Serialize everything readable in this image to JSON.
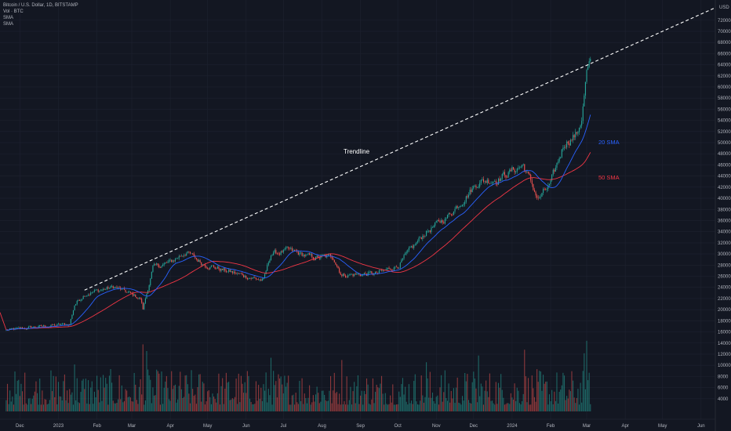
{
  "legend": {
    "title": "Bitcoin / U.S. Dollar, 1D, BITSTAMP",
    "vol": "Vol · BTC",
    "sma1": "SMA",
    "sma2": "SMA"
  },
  "colors": {
    "background": "#131722",
    "up": "#26a69a",
    "down": "#ef5350",
    "sma20": "#2962ff",
    "sma50": "#f23645",
    "grid": "#1e2230",
    "text": "#b2b5be",
    "trendline": "#ffffff"
  },
  "chart_data": {
    "type": "candlestick",
    "symbol": "Bitcoin / U.S. Dollar",
    "interval": "1D",
    "exchange": "BITSTAMP",
    "currency": "USD",
    "x_ticks": [
      "Dec",
      "2023",
      "Feb",
      "Mar",
      "Apr",
      "May",
      "Jun",
      "Jul",
      "Aug",
      "Sep",
      "Oct",
      "Nov",
      "Dec",
      "2024",
      "Feb",
      "Mar",
      "Apr",
      "May",
      "Jun"
    ],
    "x_tick_dates": [
      "2022-12-01",
      "2023-01-01",
      "2023-02-01",
      "2023-03-01",
      "2023-04-01",
      "2023-05-01",
      "2023-06-01",
      "2023-07-01",
      "2023-08-01",
      "2023-09-01",
      "2023-10-01",
      "2023-11-01",
      "2023-12-01",
      "2024-01-01",
      "2024-02-01",
      "2024-03-01",
      "2024-04-01",
      "2024-05-01",
      "2024-06-01"
    ],
    "y_ticks": [
      4000,
      6000,
      8000,
      10000,
      12000,
      14000,
      16000,
      18000,
      20000,
      22000,
      24000,
      26000,
      28000,
      30000,
      32000,
      34000,
      36000,
      38000,
      40000,
      42000,
      44000,
      46000,
      48000,
      50000,
      52000,
      54000,
      56000,
      58000,
      60000,
      62000,
      64000,
      66000,
      68000,
      70000,
      72000
    ],
    "ylim": [
      2000,
      74500
    ],
    "price_path": [
      [
        "2022-11-20",
        16300
      ],
      [
        "2022-12-15",
        16900
      ],
      [
        "2023-01-10",
        17400
      ],
      [
        "2023-01-14",
        20900
      ],
      [
        "2023-01-22",
        22800
      ],
      [
        "2023-02-15",
        24100
      ],
      [
        "2023-03-08",
        22000
      ],
      [
        "2023-03-10",
        20100
      ],
      [
        "2023-03-18",
        27500
      ],
      [
        "2023-04-01",
        28500
      ],
      [
        "2023-04-14",
        30400
      ],
      [
        "2023-04-26",
        28400
      ],
      [
        "2023-05-15",
        27000
      ],
      [
        "2023-06-15",
        25200
      ],
      [
        "2023-06-21",
        30000
      ],
      [
        "2023-07-05",
        30600
      ],
      [
        "2023-07-25",
        29300
      ],
      [
        "2023-08-10",
        29500
      ],
      [
        "2023-08-17",
        26200
      ],
      [
        "2023-09-15",
        26500
      ],
      [
        "2023-10-01",
        27900
      ],
      [
        "2023-10-23",
        33800
      ],
      [
        "2023-11-10",
        36700
      ],
      [
        "2023-12-05",
        43000
      ],
      [
        "2023-12-20",
        43500
      ],
      [
        "2024-01-10",
        46000
      ],
      [
        "2024-01-22",
        39800
      ],
      [
        "2024-02-01",
        42500
      ],
      [
        "2024-02-12",
        50000
      ],
      [
        "2024-02-22",
        51500
      ],
      [
        "2024-02-26",
        54500
      ],
      [
        "2024-03-01",
        62500
      ],
      [
        "2024-03-04",
        63800
      ]
    ],
    "sma20_label": "20 SMA",
    "sma50_label": "50 SMA",
    "trendline": {
      "label": "Trendline",
      "start": [
        "2023-01-22",
        23500
      ],
      "end": [
        "2024-03-04",
        64200
      ]
    },
    "volume_ylim": [
      0,
      17000
    ],
    "volume_ticks": [
      4000,
      6000,
      8000,
      10000,
      12000,
      14000,
      16000
    ]
  }
}
